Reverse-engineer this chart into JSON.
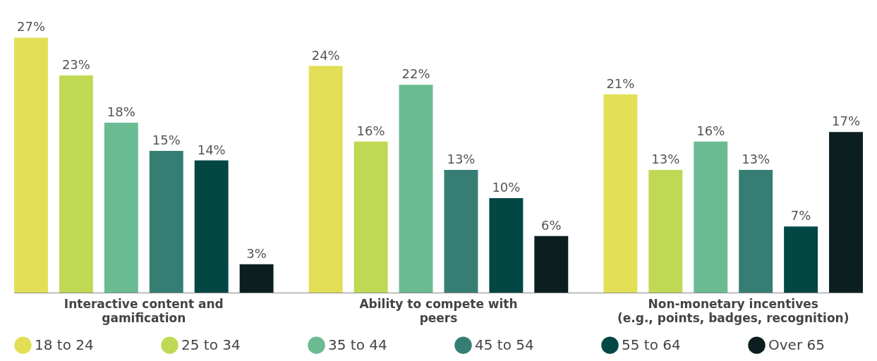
{
  "chart_data": {
    "type": "bar",
    "categories": [
      "Interactive content and\ngamification",
      "Ability to compete with\npeers",
      "Non-monetary incentives\n(e.g., points, badges, recognition)"
    ],
    "series": [
      {
        "name": "18 to 24",
        "color": "#e2df57",
        "values": [
          27,
          24,
          21
        ],
        "value_labels": [
          "27%",
          "24%",
          "21%"
        ]
      },
      {
        "name": "25 to 34",
        "color": "#c0d954",
        "values": [
          23,
          16,
          13
        ],
        "value_labels": [
          "23%",
          "16%",
          "13%"
        ]
      },
      {
        "name": "35 to 44",
        "color": "#6abb92",
        "values": [
          18,
          22,
          16
        ],
        "value_labels": [
          "18%",
          "22%",
          "16%"
        ]
      },
      {
        "name": "45 to 54",
        "color": "#367e73",
        "values": [
          15,
          13,
          13
        ],
        "value_labels": [
          "15%",
          "13%",
          "13%"
        ]
      },
      {
        "name": "55 to 64",
        "color": "#024744",
        "values": [
          14,
          10,
          7
        ],
        "value_labels": [
          "14%",
          "10%",
          "7%"
        ]
      },
      {
        "name": "Over 65",
        "color": "#0b1f20",
        "values": [
          3,
          6,
          17
        ],
        "value_labels": [
          "3%",
          "6%",
          "17%"
        ]
      }
    ],
    "legend": "bottom",
    "grid": false,
    "tick_labels": "x"
  }
}
